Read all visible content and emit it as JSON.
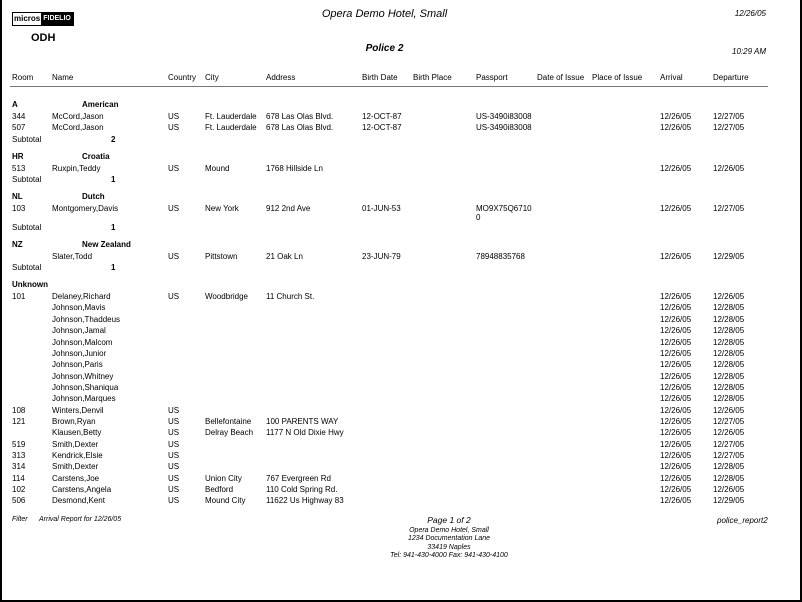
{
  "header": {
    "logo": {
      "left": "micros",
      "right": "FIDELIO"
    },
    "hotel_title": "Opera Demo Hotel, Small",
    "date": "12/26/05",
    "property_code": "ODH",
    "report_title": "Police 2",
    "time": "10:29 AM"
  },
  "columns": [
    "Room",
    "Name",
    "Country",
    "City",
    "Address",
    "Birth Date",
    "Birth Place",
    "Passport",
    "Date of Issue",
    "Place of Issue",
    "Arrival",
    "Departure"
  ],
  "groups": [
    {
      "code": "A",
      "name": "American",
      "subtotal_label": "Subtotal",
      "subtotal": "2",
      "rows": [
        {
          "room": "344",
          "name": "McCord,Jason",
          "country": "US",
          "city": "Ft. Lauderdale",
          "address": "678 Las Olas Blvd.",
          "birth_date": "12-OCT-87",
          "passport": "US-3490i83008",
          "arrival": "12/26/05",
          "departure": "12/27/05"
        },
        {
          "room": "507",
          "name": "McCord,Jason",
          "country": "US",
          "city": "Ft. Lauderdale",
          "address": "678 Las Olas Blvd.",
          "birth_date": "12-OCT-87",
          "passport": "US-3490i83008",
          "arrival": "12/26/05",
          "departure": "12/27/05"
        }
      ]
    },
    {
      "code": "HR",
      "name": "Croatia",
      "subtotal_label": "Subtotal",
      "subtotal": "1",
      "rows": [
        {
          "room": "513",
          "name": "Ruxpin,Teddy",
          "country": "US",
          "city": "Mound",
          "address": "1768 Hillside Ln",
          "arrival": "12/26/05",
          "departure": "12/26/05"
        }
      ]
    },
    {
      "code": "NL",
      "name": "Dutch",
      "subtotal_label": "Subtotal",
      "subtotal": "1",
      "rows": [
        {
          "room": "103",
          "name": "Montgomery,Davis",
          "country": "US",
          "city": "New York",
          "address": "912 2nd Ave",
          "birth_date": "01-JUN-53",
          "passport": "MO9X75Q6710",
          "passport_wrap": "0",
          "arrival": "12/26/05",
          "departure": "12/27/05"
        }
      ]
    },
    {
      "code": "NZ",
      "name": "New Zealand",
      "subtotal_label": "Subtotal",
      "subtotal": "1",
      "rows": [
        {
          "room": "",
          "name": "Slater,Todd",
          "country": "US",
          "city": "Pittstown",
          "address": "21 Oak Ln",
          "birth_date": "23-JUN-79",
          "passport": "78948835768",
          "arrival": "12/26/05",
          "departure": "12/29/05"
        }
      ]
    },
    {
      "code": "Unknown",
      "name": "",
      "rows": [
        {
          "room": "101",
          "name": "Delaney,Richard",
          "country": "US",
          "city": "Woodbridge",
          "address": "11 Church St.",
          "arrival": "12/26/05",
          "departure": "12/26/05"
        },
        {
          "room": "",
          "name": "Johnson,Mavis",
          "arrival": "12/26/05",
          "departure": "12/28/05"
        },
        {
          "room": "",
          "name": "Johnson,Thaddeus",
          "arrival": "12/26/05",
          "departure": "12/28/05"
        },
        {
          "room": "",
          "name": "Johnson,Jamal",
          "arrival": "12/26/05",
          "departure": "12/28/05"
        },
        {
          "room": "",
          "name": "Johnson,Malcom",
          "arrival": "12/26/05",
          "departure": "12/28/05"
        },
        {
          "room": "",
          "name": "Johnson,Junior",
          "arrival": "12/26/05",
          "departure": "12/28/05"
        },
        {
          "room": "",
          "name": "Johnson,Paris",
          "arrival": "12/26/05",
          "departure": "12/28/05"
        },
        {
          "room": "",
          "name": "Johnson,Whitney",
          "arrival": "12/26/05",
          "departure": "12/28/05"
        },
        {
          "room": "",
          "name": "Johnson,Shaniqua",
          "arrival": "12/26/05",
          "departure": "12/28/05"
        },
        {
          "room": "",
          "name": "Johnson,Marques",
          "arrival": "12/26/05",
          "departure": "12/28/05"
        },
        {
          "room": "108",
          "name": "Winters,Denvil",
          "country": "US",
          "arrival": "12/26/05",
          "departure": "12/26/05"
        },
        {
          "room": "121",
          "name": "Brown,Ryan",
          "country": "US",
          "city": "Bellefontaine",
          "address": "100 PARENTS WAY",
          "arrival": "12/26/05",
          "departure": "12/27/05"
        },
        {
          "room": "",
          "name": "Klausen,Betty",
          "country": "US",
          "city": "Delray Beach",
          "address": "1177 N Old Dixie Hwy",
          "arrival": "12/26/05",
          "departure": "12/26/05"
        },
        {
          "room": "519",
          "name": "Smith,Dexter",
          "country": "US",
          "arrival": "12/26/05",
          "departure": "12/27/05"
        },
        {
          "room": "313",
          "name": "Kendrick,Elsie",
          "country": "US",
          "arrival": "12/26/05",
          "departure": "12/27/05"
        },
        {
          "room": "314",
          "name": "Smith,Dexter",
          "country": "US",
          "arrival": "12/26/05",
          "departure": "12/28/05"
        },
        {
          "room": "114",
          "name": "Carstens,Joe",
          "country": "US",
          "city": "Union City",
          "address": "767 Evergreen Rd",
          "arrival": "12/26/05",
          "departure": "12/28/05"
        },
        {
          "room": "102",
          "name": "Carstens,Angela",
          "country": "US",
          "city": "Bedford",
          "address": "110 Cold Spring Rd.",
          "arrival": "12/26/05",
          "departure": "12/26/05"
        },
        {
          "room": "506",
          "name": "Desmond,Kent",
          "country": "US",
          "city": "Mound City",
          "address": "11622 Us Highway 83",
          "arrival": "12/26/05",
          "departure": "12/29/05"
        }
      ]
    }
  ],
  "footer": {
    "filter_label": "Filter",
    "filter_value": "Arrival Report for 12/26/05",
    "page": "Page 1 of 2",
    "report_name": "police_report2",
    "address_lines": [
      "Opera Demo Hotel, Small",
      "1234 Documentation Lane",
      "33419 Naples",
      "Tel: 941-430-4000  Fax: 941-430-4100"
    ]
  }
}
